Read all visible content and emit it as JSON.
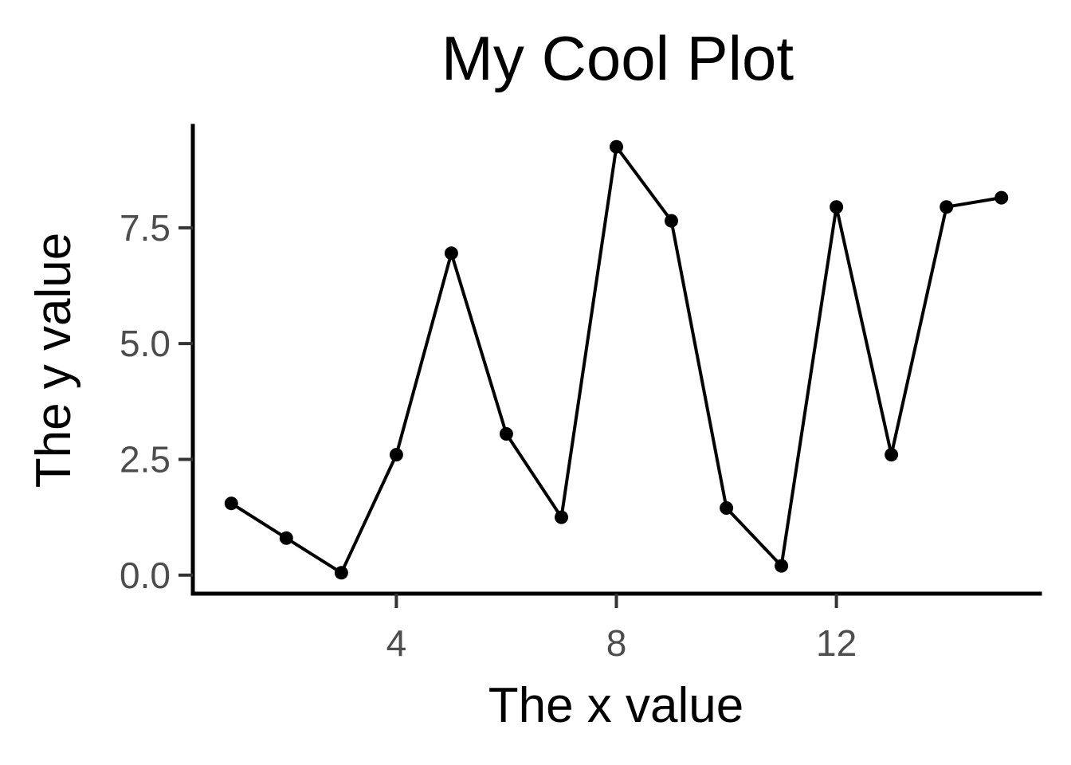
{
  "chart_data": {
    "type": "line",
    "title": "My Cool Plot",
    "xlabel": "The x value",
    "ylabel": "The y value",
    "x": [
      1,
      2,
      3,
      4,
      5,
      6,
      7,
      8,
      9,
      10,
      11,
      12,
      13,
      14,
      15
    ],
    "series": [
      {
        "values": [
          1.55,
          0.8,
          0.05,
          2.6,
          6.95,
          3.05,
          1.25,
          9.25,
          7.65,
          1.45,
          0.2,
          7.95,
          2.6,
          7.95,
          8.15
        ]
      }
    ],
    "xlim": [
      0.3,
      15.7
    ],
    "ylim": [
      -0.4,
      9.7
    ],
    "x_ticks": [
      4,
      8,
      12
    ],
    "y_ticks": [
      0.0,
      2.5,
      5.0,
      7.5
    ],
    "x_tick_labels": [
      "4",
      "8",
      "12"
    ],
    "y_tick_labels": [
      "0.0",
      "2.5",
      "5.0",
      "7.5"
    ],
    "grid": false,
    "line_color": "#000000",
    "point_color": "#000000"
  }
}
